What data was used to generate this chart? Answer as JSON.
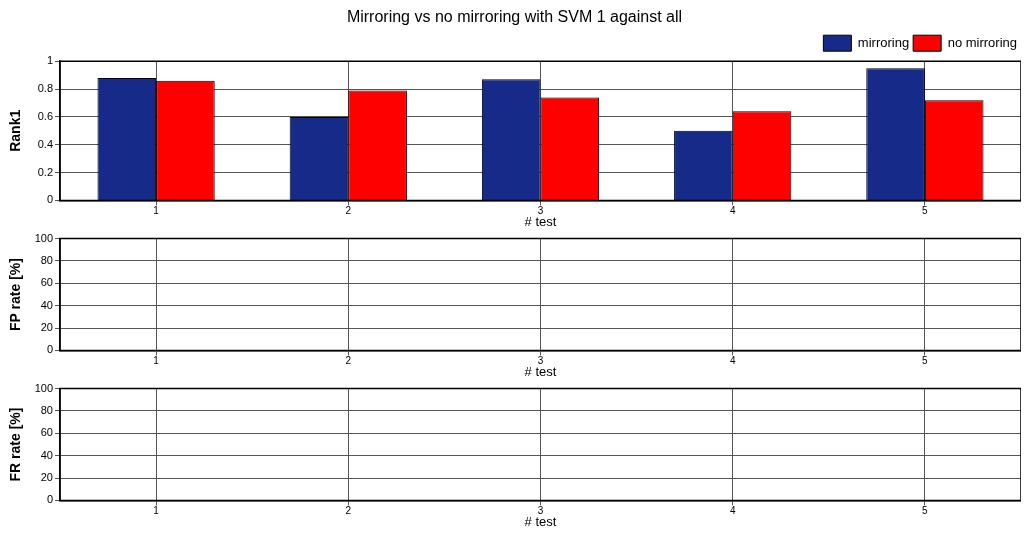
{
  "chart_data": [
    {
      "type": "bar",
      "title": "Mirroring vs no mirroring with SVM 1 against all",
      "xlabel": "# test",
      "ylabel": "Rank1",
      "categories": [
        "1",
        "2",
        "3",
        "4",
        "5"
      ],
      "series": [
        {
          "name": "mirroring",
          "color": "#162a8a",
          "values": [
            0.88,
            0.6,
            0.87,
            0.5,
            0.95
          ]
        },
        {
          "name": "no mirroring",
          "color": "#ff0000",
          "values": [
            0.86,
            0.79,
            0.74,
            0.64,
            0.72
          ]
        }
      ],
      "ylim": [
        0,
        1
      ],
      "yticks": [
        0,
        0.2,
        0.4,
        0.6,
        0.8,
        1
      ],
      "grid": true,
      "legend": "top right"
    },
    {
      "type": "bar",
      "xlabel": "# test",
      "ylabel": "FP rate [%]",
      "categories": [
        "1",
        "2",
        "3",
        "4",
        "5"
      ],
      "series": [
        {
          "color": "#162a8a",
          "values": [
            0,
            0,
            0,
            0,
            0
          ]
        },
        {
          "color": "#ff0000",
          "values": [
            0,
            0,
            0,
            0,
            0
          ]
        }
      ],
      "ylim": [
        0,
        100
      ],
      "yticks": [
        0,
        20,
        40,
        60,
        80,
        100
      ],
      "grid": true
    },
    {
      "type": "bar",
      "xlabel": "# test",
      "ylabel": "FR rate [%]",
      "categories": [
        "1",
        "2",
        "3",
        "4",
        "5"
      ],
      "series": [
        {
          "color": "#162a8a",
          "values": [
            0,
            0,
            0,
            0,
            0
          ]
        },
        {
          "color": "#ff0000",
          "values": [
            0,
            0,
            0,
            0,
            0
          ]
        }
      ],
      "ylim": [
        0,
        100
      ],
      "yticks": [
        0,
        20,
        40,
        60,
        80,
        100
      ],
      "grid": true
    }
  ]
}
